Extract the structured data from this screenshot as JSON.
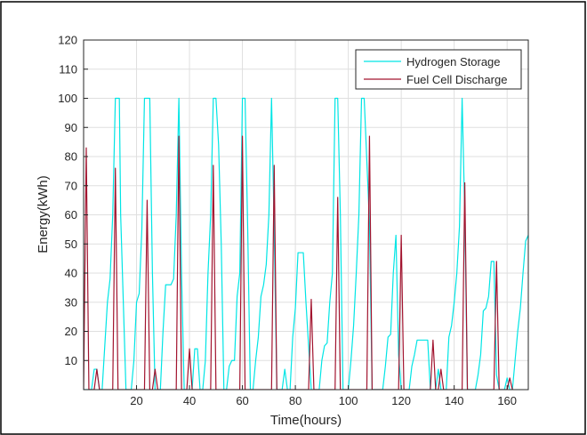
{
  "chart_data": {
    "type": "line",
    "title": "",
    "xlabel": "Time(hours)",
    "ylabel": "Energy(kWh)",
    "xlim": [
      0,
      168
    ],
    "ylim": [
      0,
      120
    ],
    "xticks": [
      20,
      40,
      60,
      80,
      100,
      120,
      140,
      160
    ],
    "yticks": [
      10,
      20,
      30,
      40,
      50,
      60,
      70,
      80,
      90,
      100,
      110,
      120
    ],
    "grid": true,
    "legend_position": "top-right",
    "series": [
      {
        "name": "Hydrogen Storage",
        "color": "#00e5e5",
        "x": [
          0,
          3,
          4,
          5,
          6,
          7,
          9,
          10,
          11,
          12,
          13.5,
          14,
          16,
          17,
          18,
          19,
          20,
          21,
          22,
          23,
          25,
          26,
          27,
          28,
          29,
          30,
          31,
          32,
          33,
          34,
          35,
          36,
          37,
          38,
          40,
          41,
          42,
          43,
          44,
          45,
          46,
          47,
          48,
          49,
          50,
          51,
          52,
          53,
          54,
          55,
          56,
          57,
          58,
          59,
          60,
          61,
          62,
          63,
          64,
          65,
          66,
          67,
          68,
          69,
          70,
          71,
          72,
          73,
          74,
          75,
          76,
          77,
          78,
          79,
          80,
          81,
          82,
          83,
          84,
          85,
          86,
          88,
          89,
          90,
          91,
          92,
          93,
          94,
          95,
          96,
          97,
          98,
          99,
          100,
          101,
          102,
          103,
          104,
          105,
          106,
          108,
          109,
          110,
          111,
          113,
          114,
          115,
          116,
          117,
          118,
          119,
          120,
          121,
          122,
          123,
          124,
          125,
          126,
          127,
          128,
          129,
          130,
          131,
          132,
          133,
          134,
          135,
          136,
          137,
          138,
          139,
          140,
          141,
          142,
          143,
          144,
          145,
          146,
          147,
          148,
          149,
          150,
          151,
          152,
          153,
          154,
          155,
          156,
          157,
          158,
          159,
          160,
          161,
          162,
          163,
          164,
          165,
          166,
          167,
          168
        ],
        "y": [
          0,
          0,
          7,
          7,
          0,
          0,
          30,
          38,
          60,
          100,
          100,
          60,
          0,
          0,
          0,
          10,
          30,
          33,
          55,
          100,
          100,
          40,
          0,
          0,
          0,
          20,
          36,
          36,
          36,
          38,
          60,
          100,
          40,
          0,
          0,
          0,
          14,
          14,
          0,
          0,
          10,
          40,
          60,
          100,
          100,
          84,
          50,
          0,
          0,
          8,
          10,
          10,
          32,
          40,
          100,
          100,
          55,
          0,
          0,
          10,
          18,
          32,
          36,
          43,
          60,
          100,
          55,
          0,
          0,
          0,
          7,
          0,
          0,
          18,
          28,
          47,
          47,
          47,
          30,
          15,
          0,
          0,
          0,
          10,
          15,
          16,
          30,
          40,
          100,
          100,
          60,
          0,
          0,
          0,
          10,
          22,
          40,
          60,
          100,
          100,
          57,
          0,
          0,
          0,
          0,
          8,
          18,
          19,
          40,
          53,
          12,
          0,
          0,
          0,
          0,
          8,
          12,
          17,
          17,
          17,
          17,
          17,
          0,
          0,
          0,
          7,
          0,
          0,
          0,
          18,
          22,
          30,
          40,
          56,
          100,
          60,
          0,
          0,
          0,
          0,
          5,
          12,
          27,
          28,
          32,
          44,
          44,
          5,
          0,
          0,
          0,
          4,
          0,
          0,
          10,
          20,
          28,
          40,
          51,
          53
        ]
      },
      {
        "name": "Fuel Cell Discharge",
        "color": "#a2142f",
        "x": [
          0,
          1,
          2,
          3,
          4,
          5,
          6,
          7,
          8,
          11,
          12,
          13,
          14,
          23,
          24,
          25,
          26,
          27,
          28,
          29,
          30,
          35,
          36,
          37,
          38,
          39,
          40,
          41,
          42,
          43,
          44,
          48,
          49,
          50,
          51,
          59,
          60,
          61,
          62,
          71,
          72,
          73,
          74,
          75,
          76,
          77,
          85,
          86,
          87,
          95,
          96,
          97,
          98,
          107,
          108,
          109,
          110,
          119,
          120,
          121,
          131,
          132,
          133,
          134,
          135,
          136,
          137,
          143,
          144,
          145,
          146,
          155,
          156,
          157,
          158,
          160,
          161,
          162
        ],
        "y": [
          0,
          83,
          0,
          0,
          0,
          7,
          0,
          0,
          0,
          0,
          76,
          0,
          0,
          0,
          65,
          0,
          0,
          7,
          0,
          0,
          0,
          0,
          87,
          0,
          0,
          0,
          14,
          0,
          0,
          0,
          0,
          0,
          77,
          0,
          0,
          0,
          87,
          0,
          0,
          0,
          77,
          0,
          0,
          0,
          0,
          0,
          0,
          31,
          0,
          0,
          66,
          0,
          0,
          0,
          87,
          0,
          0,
          0,
          53,
          0,
          0,
          17,
          0,
          0,
          7,
          0,
          0,
          0,
          71,
          0,
          0,
          0,
          44,
          0,
          0,
          0,
          4,
          0
        ]
      }
    ]
  }
}
